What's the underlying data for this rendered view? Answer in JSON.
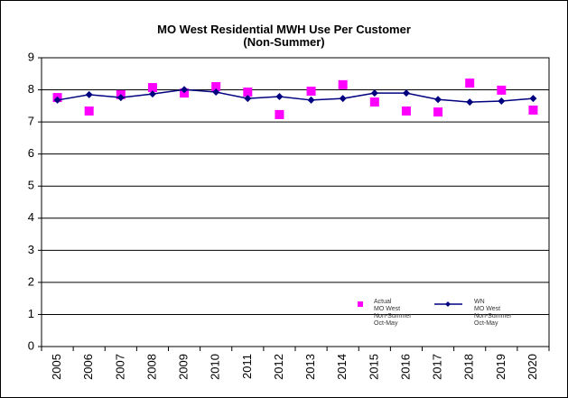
{
  "chart_data": {
    "type": "line",
    "title": "MO West Residential MWH Use Per Customer\n(Non-Summer)",
    "categories": [
      "2005",
      "2006",
      "2007",
      "2008",
      "2009",
      "2010",
      "2011",
      "2012",
      "2013",
      "2014",
      "2015",
      "2016",
      "2017",
      "2018",
      "2019",
      "2020"
    ],
    "series": [
      {
        "name": "Actual\nMO West\nNon-Summer\nOct-May",
        "color": "#ff00ff",
        "marker": "square",
        "line": false,
        "values": [
          7.76,
          7.34,
          7.85,
          8.07,
          7.9,
          8.1,
          7.93,
          7.23,
          7.96,
          8.16,
          7.62,
          7.34,
          7.31,
          8.21,
          7.99,
          7.37
        ]
      },
      {
        "name": "WN\nMO West\nNon-Summer\nOct-May",
        "color": "#000080",
        "marker": "diamond",
        "line": true,
        "values": [
          7.68,
          7.85,
          7.76,
          7.87,
          8.01,
          7.93,
          7.73,
          7.79,
          7.68,
          7.73,
          7.9,
          7.9,
          7.7,
          7.62,
          7.65,
          7.73
        ]
      }
    ],
    "ylim": [
      0,
      9
    ],
    "yticks": [
      0,
      1,
      2,
      3,
      4,
      5,
      6,
      7,
      8,
      9
    ],
    "grid": true
  }
}
